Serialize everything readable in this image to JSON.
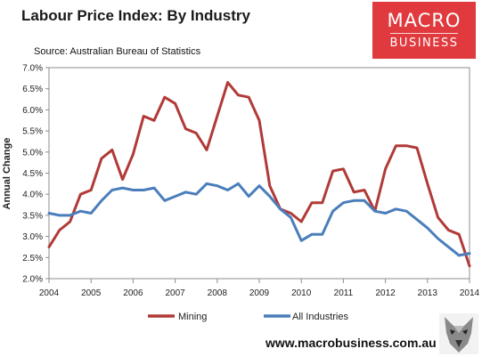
{
  "header": {
    "title": "Labour Price Index: By Industry",
    "source": "Source: Australian Bureau of Statistics"
  },
  "logo": {
    "line1": "MACRO",
    "line2": "BUSINESS",
    "color": "#e03a3e"
  },
  "footer": {
    "website": "www.macrobusiness.com.au"
  },
  "chart_data": {
    "type": "line",
    "title": "Labour Price Index: By Industry",
    "xlabel": "",
    "ylabel": "Annual Change",
    "x_tick_labels": [
      "2004",
      "2005",
      "2006",
      "2007",
      "2008",
      "2009",
      "2010",
      "2011",
      "2012",
      "2013",
      "2014"
    ],
    "y_tick_labels": [
      "2.0%",
      "2.5%",
      "3.0%",
      "3.5%",
      "4.0%",
      "4.5%",
      "5.0%",
      "5.5%",
      "6.0%",
      "6.5%",
      "7.0%"
    ],
    "xlim": [
      2004.0,
      2014.0
    ],
    "ylim": [
      2.0,
      7.0
    ],
    "grid": false,
    "legend_position": "bottom",
    "x": [
      2004.0,
      2004.25,
      2004.5,
      2004.75,
      2005.0,
      2005.25,
      2005.5,
      2005.75,
      2006.0,
      2006.25,
      2006.5,
      2006.75,
      2007.0,
      2007.25,
      2007.5,
      2007.75,
      2008.0,
      2008.25,
      2008.5,
      2008.75,
      2009.0,
      2009.25,
      2009.5,
      2009.75,
      2010.0,
      2010.25,
      2010.5,
      2010.75,
      2011.0,
      2011.25,
      2011.5,
      2011.75,
      2012.0,
      2012.25,
      2012.5,
      2012.75,
      2013.0,
      2013.25,
      2013.5,
      2013.75,
      2014.0
    ],
    "series": [
      {
        "name": "Mining",
        "color": "#b03a37",
        "values": [
          2.75,
          3.15,
          3.35,
          4.0,
          4.1,
          4.85,
          5.05,
          4.35,
          4.95,
          5.85,
          5.75,
          6.3,
          6.15,
          5.55,
          5.45,
          5.05,
          5.85,
          6.65,
          6.35,
          6.3,
          5.75,
          4.2,
          3.65,
          3.55,
          3.35,
          3.8,
          3.8,
          4.55,
          4.6,
          4.05,
          4.1,
          3.6,
          4.6,
          5.15,
          5.15,
          5.1,
          4.25,
          3.45,
          3.15,
          3.05,
          2.3
        ]
      },
      {
        "name": "All Industries",
        "color": "#4a7ebb",
        "values": [
          3.55,
          3.5,
          3.5,
          3.6,
          3.55,
          3.85,
          4.1,
          4.15,
          4.1,
          4.1,
          4.15,
          3.85,
          3.95,
          4.05,
          4.0,
          4.25,
          4.2,
          4.1,
          4.25,
          3.95,
          4.2,
          3.95,
          3.65,
          3.45,
          2.9,
          3.05,
          3.05,
          3.6,
          3.8,
          3.85,
          3.85,
          3.6,
          3.55,
          3.65,
          3.6,
          3.4,
          3.2,
          2.95,
          2.75,
          2.55,
          2.6
        ]
      }
    ]
  }
}
